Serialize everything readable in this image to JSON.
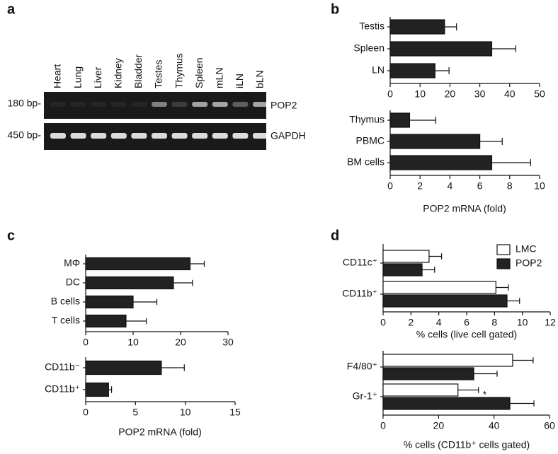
{
  "gel": {
    "panel_label": "a",
    "lanes": [
      "Heart",
      "Lung",
      "Liver",
      "Kidney",
      "Bladder",
      "Testes",
      "Thymus",
      "Spleen",
      "mLN",
      "iLN",
      "bLN"
    ],
    "markers": [
      "180 bp-",
      "450 bp-"
    ],
    "bands": [
      "POP2",
      "GAPDH"
    ]
  },
  "chart_data": [
    {
      "type": "bar",
      "panel_label": "b",
      "categories": [
        "Testis",
        "Spleen",
        "LN"
      ],
      "values": [
        18.2,
        34,
        15
      ],
      "errors": [
        4,
        8,
        4.7
      ],
      "color": "#222222",
      "xlim": [
        0,
        50
      ],
      "xticks": [
        0,
        10,
        20,
        30,
        40,
        50
      ]
    },
    {
      "type": "bar",
      "categories": [
        "Thymus",
        "PBMC",
        "BM cells"
      ],
      "values": [
        1.3,
        6,
        6.8
      ],
      "errors": [
        1.75,
        1.5,
        2.6
      ],
      "color": "#222222",
      "xlim": [
        0,
        10
      ],
      "xticks": [
        0,
        2,
        4,
        6,
        8,
        10
      ],
      "xlabel": "POP2 mRNA (fold)"
    },
    {
      "type": "bar",
      "panel_label": "c",
      "categories": [
        "MΦ",
        "DC",
        "B cells",
        "T cells"
      ],
      "values": [
        22,
        18.5,
        10,
        8.5
      ],
      "errors": [
        3,
        4,
        5,
        4.3
      ],
      "color": "#222222",
      "xlim": [
        0,
        30
      ],
      "xticks": [
        0,
        10,
        20,
        30
      ]
    },
    {
      "type": "bar",
      "categories": [
        "CD11b⁻",
        "CD11b⁺"
      ],
      "values": [
        7.6,
        2.3
      ],
      "errors": [
        2.3,
        0.3
      ],
      "color": "#222222",
      "xlim": [
        0,
        15
      ],
      "xticks": [
        0,
        5,
        10,
        15
      ],
      "xlabel": "POP2 mRNA (fold)"
    },
    {
      "type": "grouped_bar",
      "panel_label": "d",
      "categories": [
        "CD11c⁺",
        "CD11b⁺"
      ],
      "series": [
        {
          "name": "LMC",
          "color": "#ffffff",
          "values": [
            3.3,
            8.1
          ],
          "errors": [
            0.9,
            0.9
          ]
        },
        {
          "name": "POP2",
          "color": "#222222",
          "values": [
            2.8,
            8.9
          ],
          "errors": [
            0.9,
            0.9
          ]
        }
      ],
      "legend": "upper right",
      "xlim": [
        0,
        12
      ],
      "xticks": [
        0,
        2,
        4,
        6,
        8,
        10,
        12
      ],
      "xlabel": "% cells (live cell gated)"
    },
    {
      "type": "grouped_bar",
      "categories": [
        "F4/80⁺",
        "Gr-1⁺"
      ],
      "series": [
        {
          "name": "LMC",
          "color": "#ffffff",
          "values": [
            46.7,
            27
          ],
          "errors": [
            7.4,
            7.4
          ]
        },
        {
          "name": "POP2",
          "color": "#222222",
          "values": [
            32.7,
            45.7
          ],
          "errors": [
            8.4,
            8.7
          ]
        }
      ],
      "xlim": [
        0,
        60
      ],
      "xticks": [
        0,
        20,
        40,
        60
      ],
      "xlabel": "% cells (CD11b⁺ cells gated)",
      "annotation": "*"
    }
  ]
}
